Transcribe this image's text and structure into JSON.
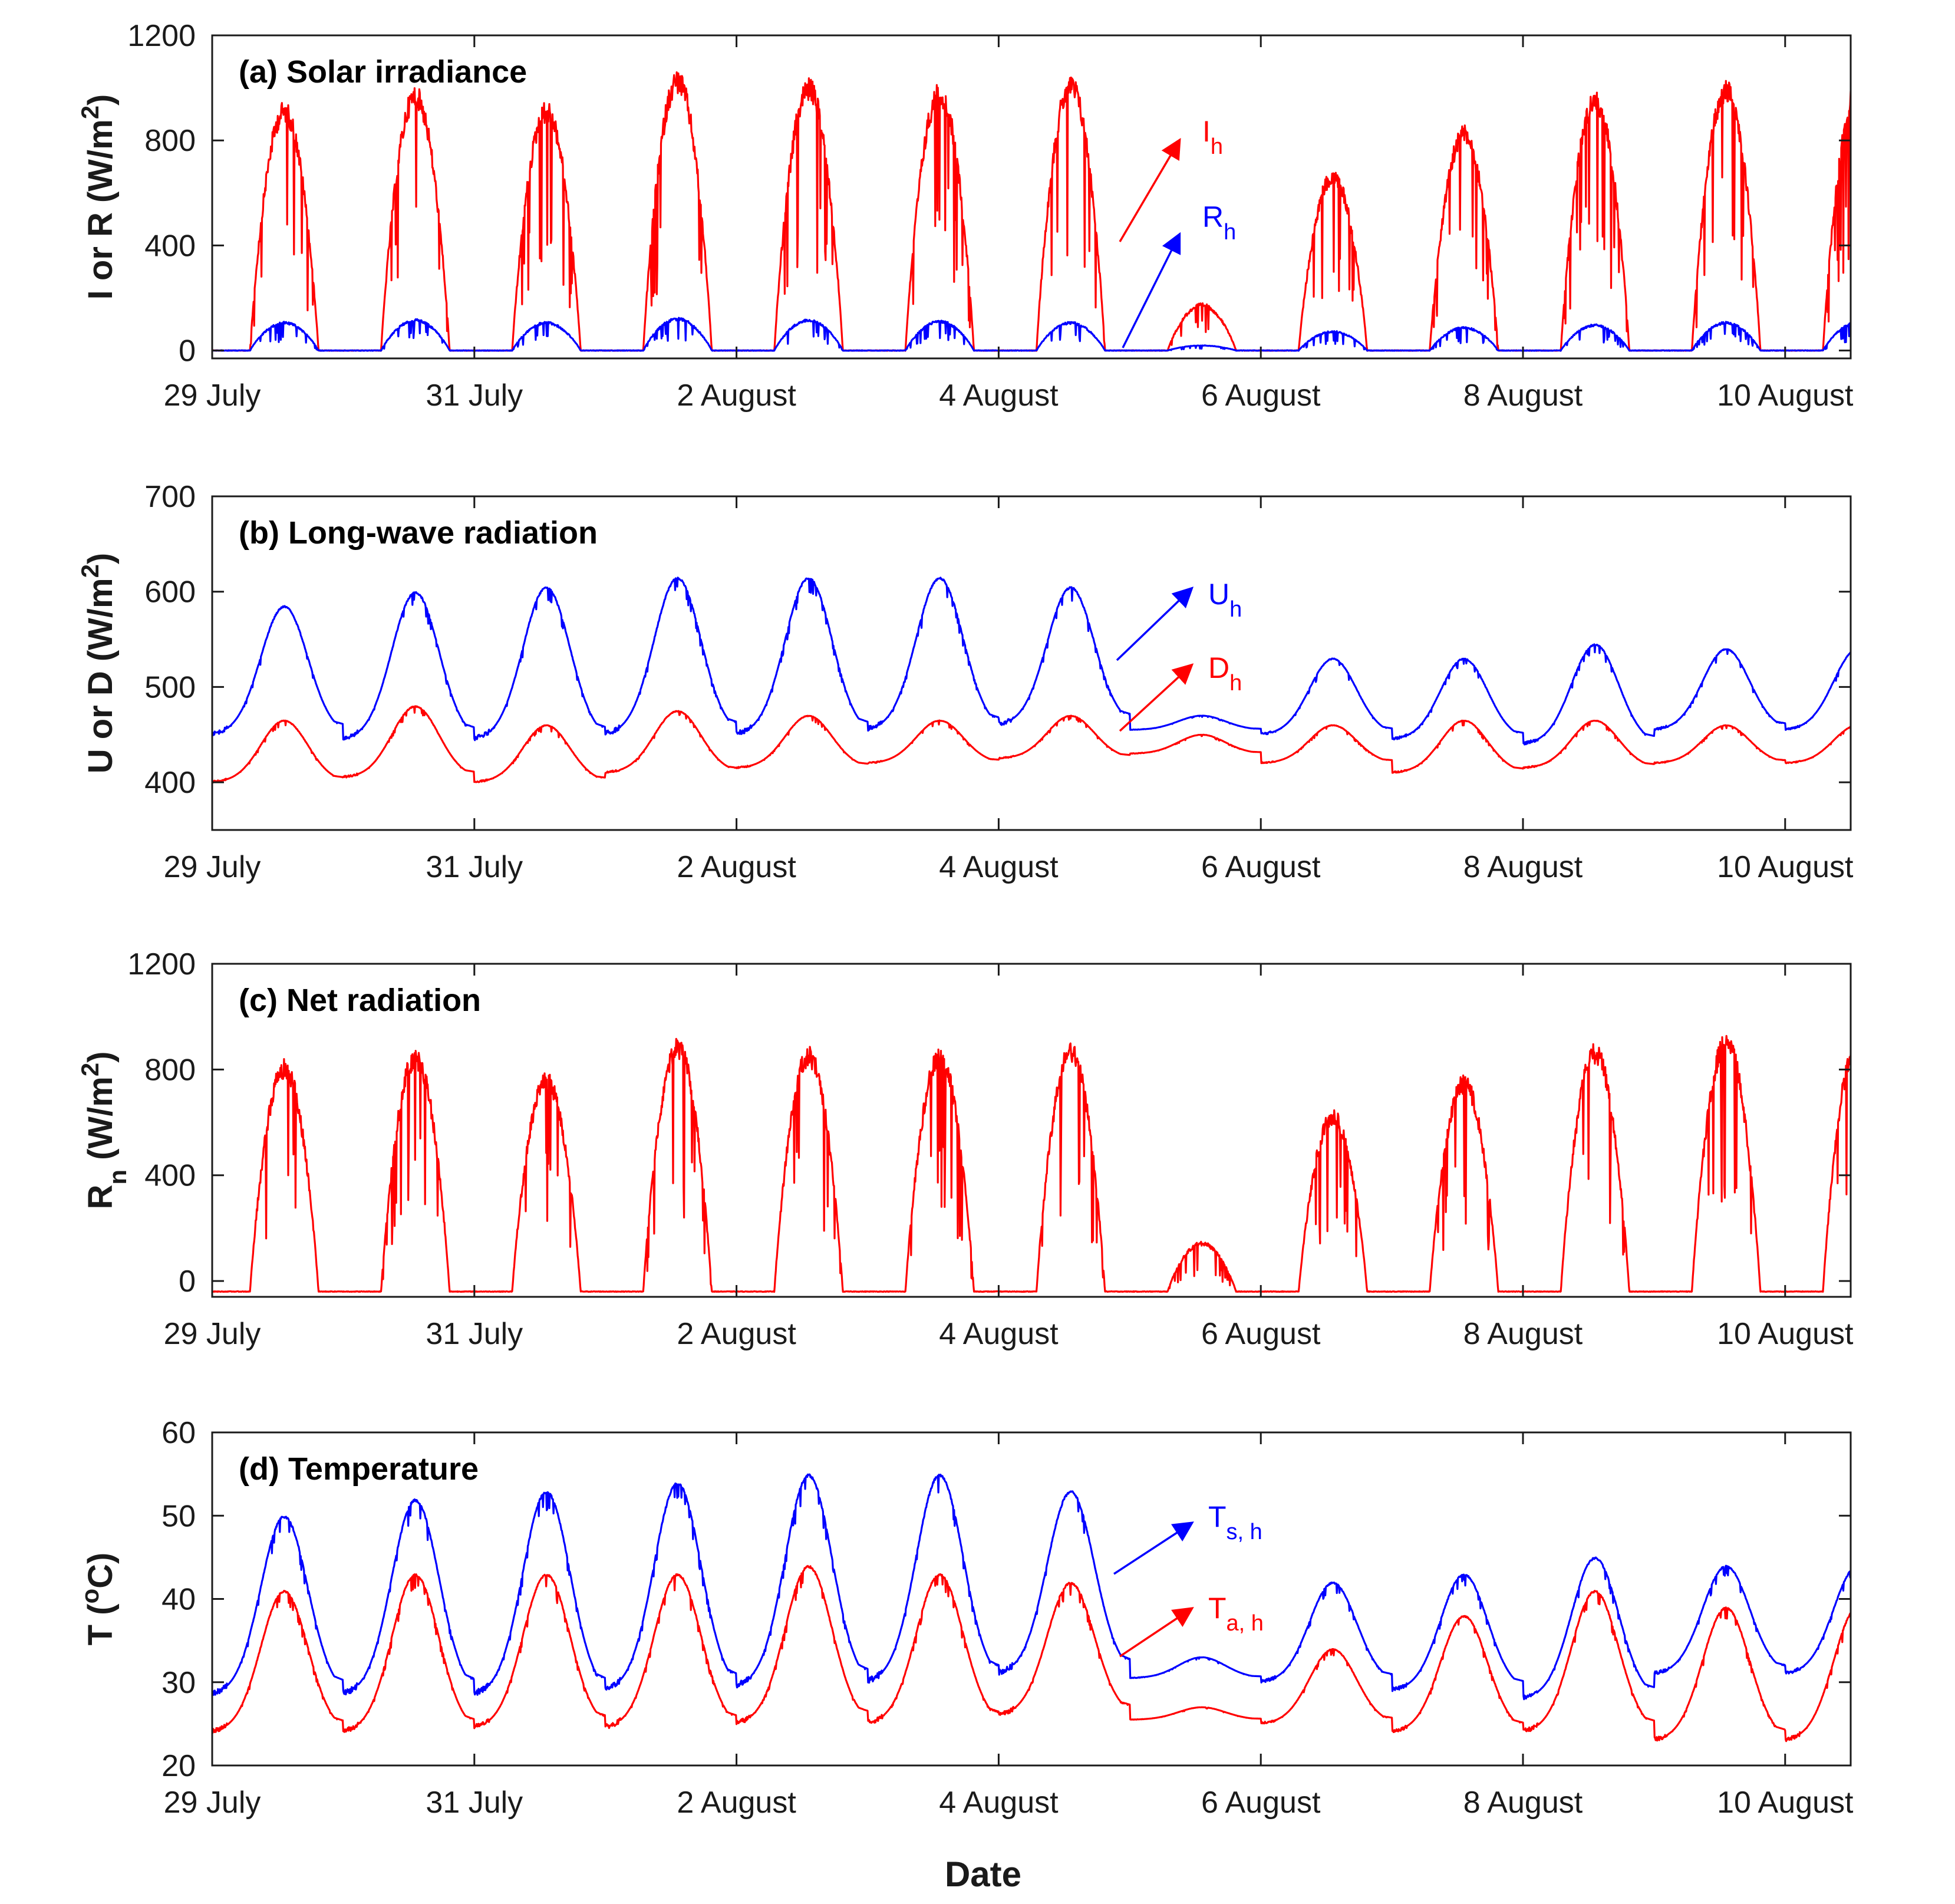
{
  "figure": {
    "xlabel": "Date",
    "date_range": [
      "29 July",
      "10 August"
    ],
    "x_tick_labels": [
      "29 July",
      "31 July",
      "2 August",
      "4 August",
      "6 August",
      "8 August",
      "10 August"
    ],
    "colors": {
      "red": "#ff0000",
      "blue": "#0000ff",
      "axis": "#1a1a1a"
    }
  },
  "chart_data": [
    {
      "type": "line",
      "title": "(a) Solar irradiance",
      "ylabel": {
        "text": "I or R (W/m",
        "sup": "2",
        "tail": ")"
      },
      "ylim": [
        -30,
        1200
      ],
      "yticks": [
        0,
        400,
        800,
        1200
      ],
      "xlim_days": [
        0,
        12.5
      ],
      "series": [
        {
          "name": "I",
          "sub": "h",
          "color": "#ff0000",
          "day_peaks": [
            950,
            1010,
            950,
            1070,
            1040,
            1020,
            1050,
            180,
            690,
            860,
            990,
            1030
          ],
          "night_baseline": 0
        },
        {
          "name": "R",
          "sub": "h",
          "color": "#0000ff",
          "day_peaks": [
            110,
            120,
            110,
            125,
            120,
            115,
            110,
            20,
            75,
            90,
            100,
            110
          ],
          "night_baseline": 0
        }
      ]
    },
    {
      "type": "line",
      "title": "(b) Long-wave radiation",
      "ylabel": {
        "text": "U or D (W/m",
        "sup": "2",
        "tail": ")"
      },
      "ylim": [
        350,
        700
      ],
      "yticks": [
        400,
        500,
        600,
        700
      ],
      "xlim_days": [
        0,
        12.5
      ],
      "series": [
        {
          "name": "U",
          "sub": "h",
          "color": "#0000ff",
          "day_peaks": [
            585,
            600,
            605,
            615,
            615,
            615,
            605,
            470,
            530,
            530,
            545,
            540
          ],
          "night_baseline": [
            450,
            445,
            445,
            450,
            450,
            455,
            460,
            455,
            450,
            445,
            440,
            455
          ]
        },
        {
          "name": "D",
          "sub": "h",
          "color": "#ff0000",
          "day_peaks": [
            465,
            480,
            460,
            475,
            470,
            465,
            470,
            450,
            460,
            465,
            465,
            460
          ],
          "night_baseline": [
            400,
            405,
            400,
            410,
            415,
            420,
            425,
            430,
            420,
            410,
            415,
            420
          ]
        }
      ]
    },
    {
      "type": "line",
      "title": "(c) Net radiation",
      "ylabel": {
        "text": "R",
        "sub": "n",
        "tail": " (W/m",
        "sup": "2",
        "tail2": ")"
      },
      "ylim": [
        -60,
        1200
      ],
      "yticks": [
        0,
        400,
        800,
        1200
      ],
      "xlim_days": [
        0,
        12.5
      ],
      "series": [
        {
          "name": "R",
          "sub": "n",
          "color": "#ff0000",
          "day_peaks": [
            840,
            880,
            790,
            920,
            890,
            880,
            900,
            150,
            650,
            780,
            900,
            940
          ],
          "night_baseline": -40
        }
      ]
    },
    {
      "type": "line",
      "title": "(d) Temperature",
      "ylabel": {
        "text": "T (",
        "sup": "o",
        "tail": "C)"
      },
      "ylim": [
        20,
        60
      ],
      "yticks": [
        20,
        30,
        40,
        50,
        60
      ],
      "xlim_days": [
        0,
        12.5
      ],
      "series": [
        {
          "name": "T",
          "sub": "s, h",
          "color": "#0000ff",
          "day_peaks": [
            50,
            52,
            53,
            54,
            55,
            55,
            53,
            33,
            42,
            43,
            45,
            44
          ],
          "night_baseline": [
            28.5,
            28.5,
            28.5,
            29,
            29.5,
            30,
            31,
            30.5,
            30,
            29,
            28,
            31
          ]
        },
        {
          "name": "T",
          "sub": "a, h",
          "color": "#ff0000",
          "day_peaks": [
            41,
            43,
            43,
            43,
            44,
            43,
            42,
            27,
            34,
            38,
            41,
            39
          ],
          "night_baseline": [
            24,
            24,
            24.5,
            24.5,
            25,
            25,
            26,
            25.5,
            25,
            24,
            24,
            23
          ]
        }
      ]
    }
  ],
  "annotations": [
    {
      "panel": 0,
      "label": "I",
      "sub": "h",
      "color": "#ff0000"
    },
    {
      "panel": 0,
      "label": "R",
      "sub": "h",
      "color": "#0000ff"
    },
    {
      "panel": 1,
      "label": "U",
      "sub": "h",
      "color": "#0000ff"
    },
    {
      "panel": 1,
      "label": "D",
      "sub": "h",
      "color": "#ff0000"
    },
    {
      "panel": 3,
      "label": "T",
      "sub": "s, h",
      "color": "#0000ff"
    },
    {
      "panel": 3,
      "label": "T",
      "sub": "a, h",
      "color": "#ff0000"
    }
  ]
}
